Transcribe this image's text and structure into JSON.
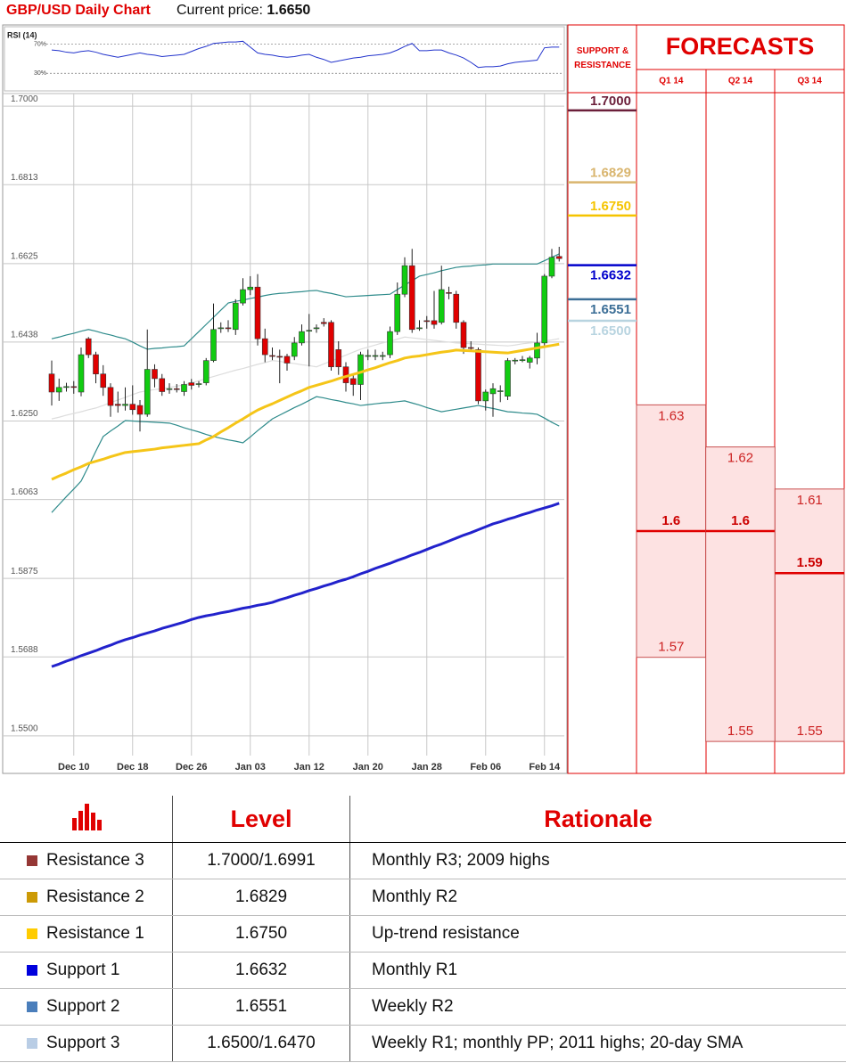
{
  "header": {
    "title": "GBP/USD Daily Chart",
    "price_label": "Current price:",
    "price": "1.6650"
  },
  "chart_data": [
    {
      "type": "candlestick",
      "categories": [
        null,
        null,
        null,
        "Dec 10",
        null,
        null,
        null,
        null,
        null,
        null,
        null,
        "Dec 18",
        null,
        null,
        null,
        null,
        null,
        null,
        null,
        "Dec 26",
        null,
        null,
        null,
        null,
        null,
        null,
        null,
        "Jan 03",
        null,
        null,
        null,
        null,
        null,
        null,
        null,
        "Jan 12",
        null,
        null,
        null,
        null,
        null,
        null,
        null,
        "Jan 20",
        null,
        null,
        null,
        null,
        null,
        null,
        null,
        "Jan 28",
        null,
        null,
        null,
        null,
        null,
        null,
        null,
        "Feb 06",
        null,
        null,
        null,
        null,
        null,
        null,
        null,
        "Feb 14",
        null,
        null
      ],
      "open": [
        1.6362,
        1.6319,
        1.633,
        1.6332,
        1.6319,
        1.6446,
        1.6408,
        1.6362,
        1.633,
        1.629,
        1.6287,
        1.629,
        1.6287,
        1.6266,
        1.6373,
        1.6351,
        1.6325,
        1.6327,
        1.632,
        1.6341,
        1.6337,
        1.6341,
        1.6394,
        1.647,
        1.6472,
        1.6468,
        1.6531,
        1.6563,
        1.6569,
        1.6446,
        1.6406,
        1.6404,
        1.6404,
        1.6404,
        1.6436,
        1.6465,
        1.647,
        1.6485,
        1.6485,
        1.642,
        1.6379,
        1.6351,
        1.6337,
        1.6405,
        1.6404,
        1.6404,
        1.6408,
        1.6463,
        1.6552,
        1.662,
        1.647,
        1.6489,
        1.6489,
        1.6485,
        1.6556,
        1.6552,
        1.6485,
        1.6425,
        1.642,
        1.6298,
        1.6315,
        1.632,
        1.6309,
        1.6394,
        1.6395,
        1.639,
        1.64,
        1.6436,
        1.6595,
        1.6642
      ],
      "high": [
        1.6394,
        1.6351,
        1.6341,
        1.6345,
        1.6425,
        1.645,
        1.6415,
        1.6383,
        1.634,
        1.632,
        1.633,
        1.6335,
        1.63,
        1.6468,
        1.6385,
        1.6362,
        1.634,
        1.6338,
        1.6345,
        1.635,
        1.6345,
        1.64,
        1.653,
        1.6485,
        1.649,
        1.654,
        1.659,
        1.6595,
        1.66,
        1.647,
        1.6425,
        1.642,
        1.641,
        1.645,
        1.648,
        1.6505,
        1.648,
        1.6495,
        1.649,
        1.644,
        1.639,
        1.636,
        1.6415,
        1.642,
        1.642,
        1.6415,
        1.6475,
        1.658,
        1.664,
        1.666,
        1.649,
        1.65,
        1.656,
        1.662,
        1.657,
        1.656,
        1.649,
        1.644,
        1.6425,
        1.6325,
        1.634,
        1.6335,
        1.64,
        1.64,
        1.6405,
        1.6405,
        1.646,
        1.66,
        1.666,
        1.6665
      ],
      "low": [
        1.6287,
        1.6298,
        1.632,
        1.6315,
        1.6309,
        1.64,
        1.634,
        1.631,
        1.626,
        1.627,
        1.6275,
        1.6265,
        1.6225,
        1.626,
        1.633,
        1.631,
        1.6315,
        1.6318,
        1.631,
        1.6325,
        1.633,
        1.6335,
        1.639,
        1.646,
        1.6462,
        1.6455,
        1.6525,
        1.655,
        1.643,
        1.639,
        1.6395,
        1.634,
        1.637,
        1.6395,
        1.643,
        1.638,
        1.646,
        1.6475,
        1.637,
        1.636,
        1.632,
        1.631,
        1.63,
        1.6395,
        1.6395,
        1.6395,
        1.64,
        1.6455,
        1.6545,
        1.646,
        1.6465,
        1.647,
        1.647,
        1.648,
        1.654,
        1.647,
        1.641,
        1.6415,
        1.629,
        1.6275,
        1.626,
        1.6295,
        1.63,
        1.6385,
        1.639,
        1.6375,
        1.6385,
        1.643,
        1.659,
        1.663
      ],
      "close": [
        1.6319,
        1.633,
        1.6332,
        1.633,
        1.6408,
        1.6408,
        1.6362,
        1.633,
        1.6287,
        1.6287,
        1.629,
        1.6277,
        1.6266,
        1.6373,
        1.6351,
        1.632,
        1.6327,
        1.6325,
        1.6337,
        1.6335,
        1.6339,
        1.6394,
        1.6468,
        1.6472,
        1.647,
        1.6531,
        1.6563,
        1.6569,
        1.6446,
        1.6408,
        1.6404,
        1.6403,
        1.6388,
        1.6436,
        1.6463,
        1.6466,
        1.6472,
        1.6482,
        1.6379,
        1.6379,
        1.6341,
        1.6337,
        1.6408,
        1.6406,
        1.6406,
        1.6406,
        1.6463,
        1.6552,
        1.662,
        1.6468,
        1.6472,
        1.6487,
        1.648,
        1.6563,
        1.6554,
        1.6485,
        1.6425,
        1.6424,
        1.6298,
        1.6319,
        1.6327,
        1.6322,
        1.6394,
        1.6395,
        1.6396,
        1.64,
        1.6436,
        1.6595,
        1.664,
        1.6637
      ],
      "up_color": "#11cc11",
      "down_color": "#e00000",
      "series": [
        {
          "color": "#dddddd",
          "style": "light",
          "values": [
            1.6255,
            1.6259,
            1.6264,
            1.6268,
            1.6272,
            1.6277,
            1.6281,
            1.6287,
            1.6294,
            1.63,
            1.6306,
            1.6313,
            1.6319,
            1.6322,
            1.6325,
            1.6327,
            1.633,
            1.6333,
            1.6336,
            1.6341,
            1.6346,
            1.6351,
            1.6356,
            1.6361,
            1.6366,
            1.6371,
            1.6375,
            1.638,
            1.6385,
            1.6389,
            1.6394,
            1.6392,
            1.6389,
            1.6387,
            1.6384,
            1.6382,
            1.6379,
            1.6386,
            1.6393,
            1.64,
            1.6407,
            1.6414,
            1.6421,
            1.6426,
            1.6431,
            1.6436,
            1.644,
            1.6445,
            1.645,
            1.6448,
            1.6446,
            1.6444,
            1.6442,
            1.644,
            1.6438,
            1.6436,
            1.6435,
            1.6434,
            1.6433,
            1.6432,
            1.6431,
            1.643,
            1.6429,
            1.6431,
            1.6434,
            1.6436,
            1.6438,
            1.6441,
            1.6443,
            1.6446
          ]
        },
        {
          "color": "#2e8b8b",
          "style": "light",
          "values": [
            1.6446,
            1.645,
            1.6455,
            1.6459,
            1.6464,
            1.6468,
            1.6464,
            1.6459,
            1.6455,
            1.645,
            1.6446,
            1.6438,
            1.6429,
            1.6421,
            1.6423,
            1.6424,
            1.6426,
            1.6427,
            1.6429,
            1.6446,
            1.6463,
            1.648,
            1.6497,
            1.6514,
            1.6531,
            1.6535,
            1.6538,
            1.6542,
            1.6545,
            1.6549,
            1.6552,
            1.6554,
            1.6555,
            1.6557,
            1.6558,
            1.656,
            1.6561,
            1.6557,
            1.6554,
            1.655,
            1.6546,
            1.6547,
            1.6548,
            1.6549,
            1.655,
            1.6551,
            1.6552,
            1.6563,
            1.6574,
            1.6584,
            1.6595,
            1.6599,
            1.6603,
            1.6608,
            1.6612,
            1.6616,
            1.6618,
            1.6619,
            1.6621,
            1.6622,
            1.6624,
            1.6624,
            1.6624,
            1.6624,
            1.6624,
            1.6624,
            1.6624,
            1.6632,
            1.664,
            1.6648
          ]
        },
        {
          "color": "#2e8b8b",
          "style": "light",
          "values": [
            1.6032,
            1.6051,
            1.607,
            1.6088,
            1.6107,
            1.6142,
            1.6178,
            1.6213,
            1.6226,
            1.6238,
            1.6251,
            1.625,
            1.6249,
            1.6248,
            1.6247,
            1.6246,
            1.6245,
            1.624,
            1.6234,
            1.6229,
            1.6224,
            1.6218,
            1.6213,
            1.6209,
            1.6205,
            1.6202,
            1.6198,
            1.6212,
            1.6227,
            1.6241,
            1.6255,
            1.6264,
            1.6273,
            1.6282,
            1.629,
            1.6299,
            1.6308,
            1.6305,
            1.6301,
            1.6298,
            1.6294,
            1.6291,
            1.6287,
            1.6289,
            1.6291,
            1.6293,
            1.6294,
            1.6296,
            1.6298,
            1.6293,
            1.6288,
            1.6282,
            1.6277,
            1.6272,
            1.6275,
            1.6278,
            1.6281,
            1.6284,
            1.6287,
            1.6283,
            1.628,
            1.6276,
            1.6272,
            1.6271,
            1.6269,
            1.6268,
            1.6266,
            1.6257,
            1.6247,
            1.6238
          ]
        },
        {
          "color": "#f5c518",
          "style": "heavy",
          "values": [
            1.6111,
            1.6119,
            1.6126,
            1.6134,
            1.6141,
            1.6149,
            1.6154,
            1.6159,
            1.6165,
            1.617,
            1.6175,
            1.6177,
            1.6179,
            1.6181,
            1.6183,
            1.6186,
            1.6188,
            1.619,
            1.6192,
            1.6194,
            1.6196,
            1.6205,
            1.6213,
            1.6224,
            1.6234,
            1.6245,
            1.6255,
            1.6266,
            1.6276,
            1.6284,
            1.6291,
            1.6299,
            1.6307,
            1.6315,
            1.6322,
            1.633,
            1.6335,
            1.634,
            1.6345,
            1.6351,
            1.6356,
            1.6361,
            1.6366,
            1.6372,
            1.6377,
            1.6383,
            1.6389,
            1.6394,
            1.64,
            1.6403,
            1.6405,
            1.6408,
            1.6411,
            1.6414,
            1.6416,
            1.6419,
            1.6418,
            1.6417,
            1.6416,
            1.6415,
            1.6414,
            1.6413,
            1.6412,
            1.6415,
            1.6418,
            1.6421,
            1.6424,
            1.6427,
            1.643,
            1.6433
          ]
        },
        {
          "color": "#2222cc",
          "style": "heavy",
          "values": [
            1.5665,
            1.5671,
            1.5678,
            1.5684,
            1.5691,
            1.5697,
            1.5703,
            1.571,
            1.5716,
            1.5723,
            1.5729,
            1.5734,
            1.574,
            1.5745,
            1.575,
            1.5756,
            1.5761,
            1.5766,
            1.5771,
            1.5777,
            1.5782,
            1.5786,
            1.5789,
            1.5793,
            1.5796,
            1.58,
            1.5804,
            1.5807,
            1.5811,
            1.5814,
            1.5818,
            1.5824,
            1.5829,
            1.5835,
            1.584,
            1.5846,
            1.5851,
            1.5857,
            1.5862,
            1.5868,
            1.5873,
            1.5879,
            1.5886,
            1.5892,
            1.5899,
            1.5905,
            1.5911,
            1.5918,
            1.5924,
            1.5931,
            1.5937,
            1.5944,
            1.5951,
            1.5957,
            1.5964,
            1.5971,
            1.5978,
            1.5984,
            1.5991,
            1.5998,
            1.6005,
            1.601,
            1.6016,
            1.6021,
            1.6027,
            1.6032,
            1.6038,
            1.6043,
            1.6048,
            1.6054
          ]
        }
      ],
      "ylim": [
        1.5453,
        1.703
      ],
      "yticks": [
        {
          "value": 1.7,
          "label": "1.7000"
        },
        1.6813,
        1.6625,
        1.6438,
        {
          "value": 1.625,
          "label": "1.6250"
        },
        1.6063,
        1.5875,
        1.5688,
        {
          "value": 1.55,
          "label": "1.5500"
        }
      ],
      "grid": true
    },
    {
      "type": "line",
      "title": "RSI (14)",
      "color": "#2233cc",
      "values": [
        62,
        61,
        59,
        58,
        60,
        61,
        59,
        56,
        54,
        52,
        54,
        56,
        58,
        56,
        55,
        53,
        54,
        55,
        56,
        60,
        64,
        67,
        71,
        72,
        73,
        73,
        74,
        66,
        58,
        56,
        55,
        53,
        52,
        53,
        55,
        56,
        52,
        49,
        45,
        47,
        49,
        51,
        52,
        54,
        55,
        56,
        58,
        62,
        67,
        71,
        61,
        61,
        62,
        62,
        58,
        55,
        51,
        45,
        38,
        39,
        39,
        40,
        43,
        45,
        46,
        47,
        48,
        65,
        66,
        66
      ],
      "ylim": [
        7,
        94
      ],
      "yticks": [
        {
          "value": 70,
          "label": "70%"
        },
        {
          "value": 30,
          "label": "30%"
        }
      ]
    },
    {
      "type": "levels",
      "title": "SUPPORT & RESISTANCE",
      "values": [
        1.7,
        1.6829,
        1.675,
        1.6632,
        1.6551,
        1.65
      ],
      "value_labels": [
        "1.7000",
        "1.6829",
        "1.6750",
        "1.6632",
        "1.6551",
        "1.6500"
      ],
      "colors": [
        "#6b1f3a",
        "#d9b56e",
        "#f5c400",
        "#0000cc",
        "#3b6e96",
        "#b8d4e0"
      ],
      "ylim": [
        1.5424,
        1.704
      ]
    },
    {
      "type": "range",
      "title": "FORECASTS",
      "categories": [
        "Q1 14",
        "Q2 14",
        "Q3 14"
      ],
      "high": [
        1.63,
        1.62,
        1.61
      ],
      "median": [
        1.6,
        1.6,
        1.59
      ],
      "low": [
        1.57,
        1.55,
        1.55
      ],
      "color": "#e00000",
      "fill": "#fde2e2",
      "ylim": [
        1.5424,
        1.704
      ]
    }
  ],
  "table": {
    "columns": [
      "Level",
      "Rationale"
    ],
    "rows": [
      {
        "name": "Resistance 3",
        "color": "#953735",
        "level": "1.7000/1.6991",
        "rationale": "Monthly R3; 2009 highs"
      },
      {
        "name": "Resistance 2",
        "color": "#cc9a06",
        "level": "1.6829",
        "rationale": "Monthly R2"
      },
      {
        "name": "Resistance 1",
        "color": "#ffcc00",
        "level": "1.6750",
        "rationale": "Up-trend resistance"
      },
      {
        "name": "Support 1",
        "color": "#0000dd",
        "level": "1.6632",
        "rationale": "Monthly R1"
      },
      {
        "name": "Support 2",
        "color": "#4a7ebb",
        "level": "1.6551",
        "rationale": "Weekly R2"
      },
      {
        "name": "Support 3",
        "color": "#b9cde5",
        "level": "1.6500/1.6470",
        "rationale": "Weekly R1; monthly PP; 2011 highs; 20-day SMA"
      }
    ]
  }
}
